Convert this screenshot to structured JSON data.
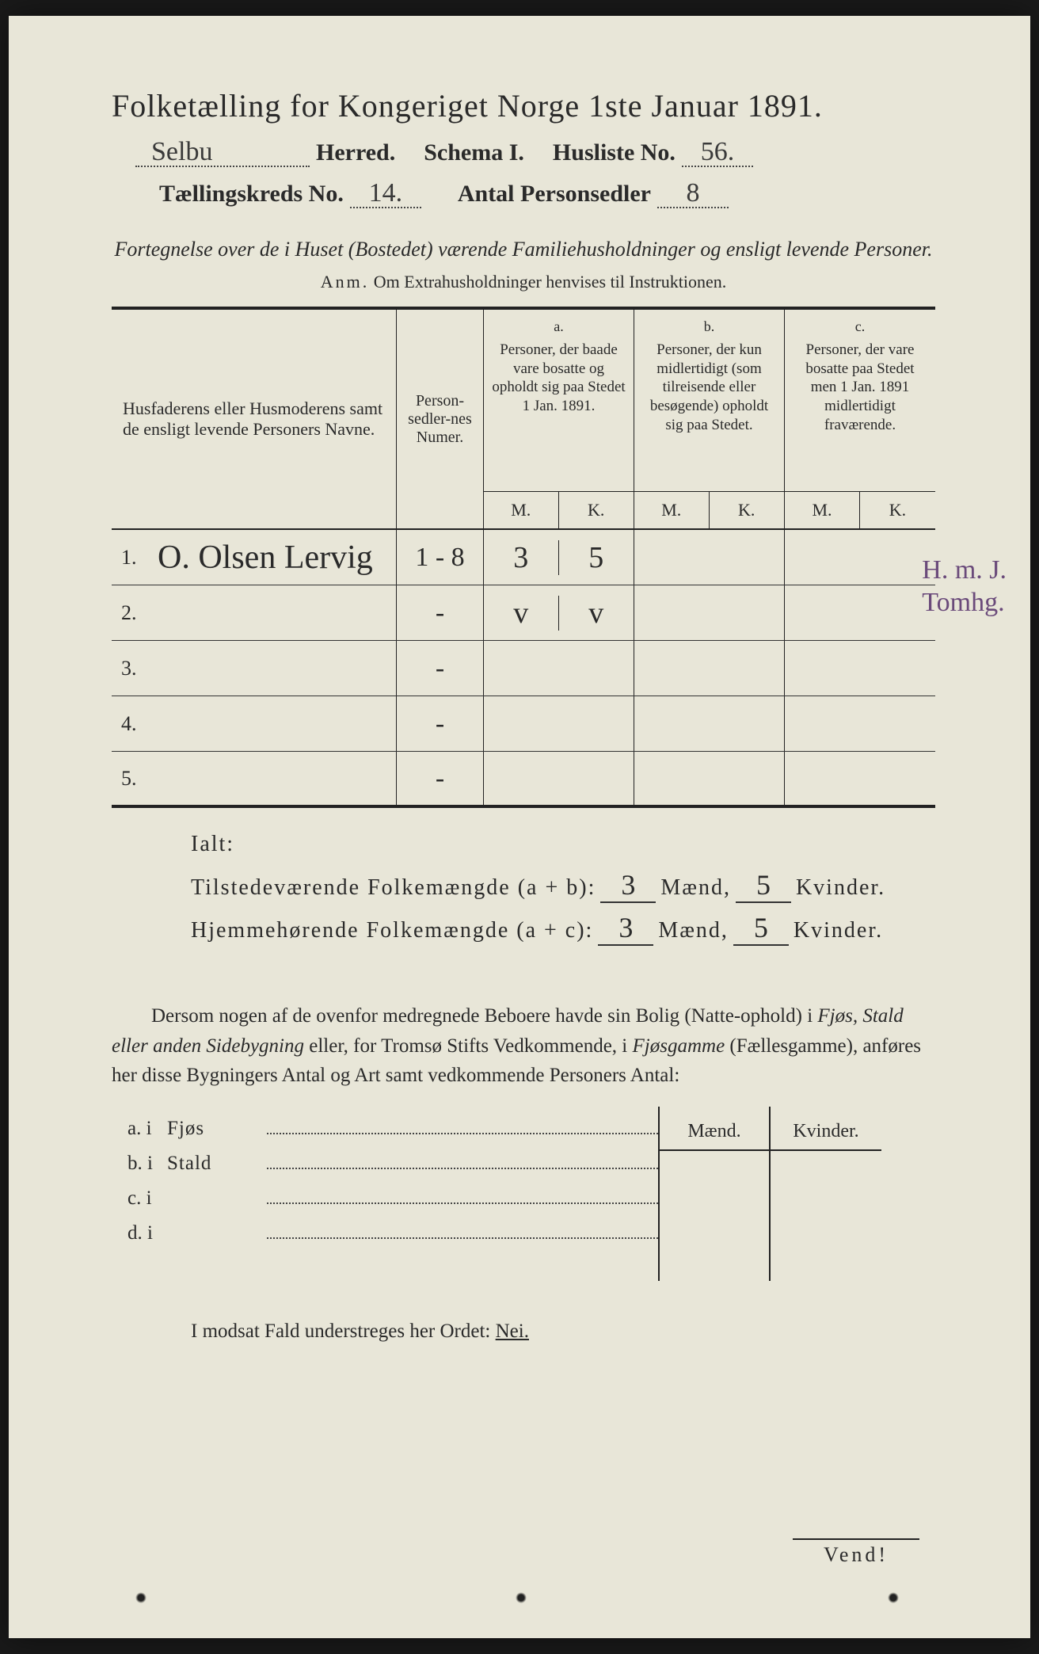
{
  "title": "Folketælling for Kongeriget Norge 1ste Januar 1891.",
  "header": {
    "herred_value": "Selbu",
    "herred_label": "Herred.",
    "schema_label": "Schema I.",
    "husliste_label": "Husliste No.",
    "husliste_value": "56.",
    "kreds_label": "Tællingskreds No.",
    "kreds_value": "14.",
    "personsedler_label": "Antal Personsedler",
    "personsedler_value": "8"
  },
  "subtitle": "Fortegnelse over de i Huset (Bostedet) værende Familiehusholdninger og ensligt levende Personer.",
  "anm_label": "Anm.",
  "anm_text": "Om Extrahusholdninger henvises til Instruktionen.",
  "columns": {
    "names": "Husfaderens eller Husmoderens samt de ensligt levende Personers Navne.",
    "nummer": "Person-sedler-nes Numer.",
    "a_tag": "a.",
    "a_text": "Personer, der baade vare bosatte og opholdt sig paa Stedet 1 Jan. 1891.",
    "b_tag": "b.",
    "b_text": "Personer, der kun midlertidigt (som tilreisende eller besøgende) opholdt sig paa Stedet.",
    "c_tag": "c.",
    "c_text": "Personer, der vare bosatte paa Stedet men 1 Jan. 1891 midlertidigt fraværende.",
    "M": "M.",
    "K": "K."
  },
  "margin_note_1": "H. m. J.",
  "margin_note_2": "Tomhg.",
  "rows": [
    {
      "n": "1.",
      "name": "O. Olsen Lervig",
      "num": "1 - 8",
      "aM": "3",
      "aK": "5",
      "bM": "",
      "bK": "",
      "cM": "",
      "cK": ""
    },
    {
      "n": "2.",
      "name": "",
      "num": "-",
      "aM": "v",
      "aK": "v",
      "bM": "",
      "bK": "",
      "cM": "",
      "cK": ""
    },
    {
      "n": "3.",
      "name": "",
      "num": "-",
      "aM": "",
      "aK": "",
      "bM": "",
      "bK": "",
      "cM": "",
      "cK": ""
    },
    {
      "n": "4.",
      "name": "",
      "num": "-",
      "aM": "",
      "aK": "",
      "bM": "",
      "bK": "",
      "cM": "",
      "cK": ""
    },
    {
      "n": "5.",
      "name": "",
      "num": "-",
      "aM": "",
      "aK": "",
      "bM": "",
      "bK": "",
      "cM": "",
      "cK": ""
    }
  ],
  "ialt": {
    "title": "Ialt:",
    "line1_label": "Tilstedeværende Folkemængde (a + b):",
    "line1_m": "3",
    "line1_k": "5",
    "line2_label": "Hjemmehørende Folkemængde (a + c):",
    "line2_m": "3",
    "line2_k": "5",
    "maend": "Mænd,",
    "kvinder": "Kvinder."
  },
  "paragraph": {
    "p1": "Dersom nogen af de ovenfor medregnede Beboere havde sin Bolig (Natte-ophold) i ",
    "it1": "Fjøs, Stald eller anden Sidebygning",
    "p2": " eller, for Tromsø Stifts Vedkommende, i ",
    "it2": "Fjøsgamme",
    "p3": " (Fællesgamme), anføres her disse Bygningers Antal og Art samt vedkommende Personers Antal:"
  },
  "mk": {
    "maend": "Mænd.",
    "kvinder": "Kvinder.",
    "rows": [
      {
        "lab": "a.  i",
        "word": "Fjøs"
      },
      {
        "lab": "b.  i",
        "word": "Stald"
      },
      {
        "lab": "c.  i",
        "word": ""
      },
      {
        "lab": "d.  i",
        "word": ""
      }
    ]
  },
  "nei_line_pre": "I modsat Fald understreges her Ordet: ",
  "nei": "Nei.",
  "vend": "Vend!"
}
